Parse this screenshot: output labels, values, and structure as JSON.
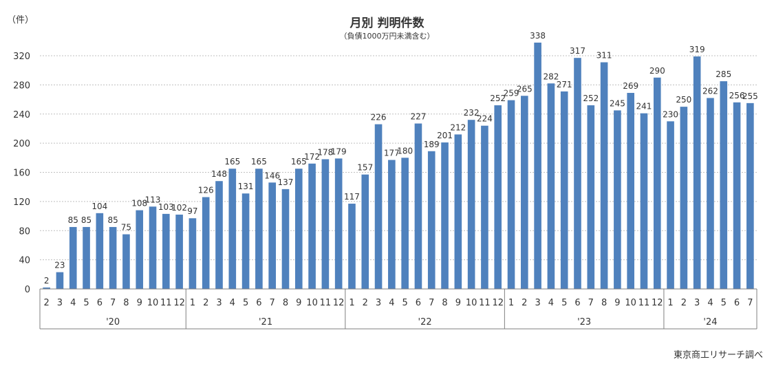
{
  "chart_data": {
    "type": "bar",
    "title": "月別 判明件数",
    "subtitle": "（負債1000万円未満含む）",
    "ylabel": "（件）",
    "source": "東京商工リサーチ調べ",
    "ylim": [
      0,
      340
    ],
    "yticks": [
      0,
      40,
      80,
      120,
      160,
      200,
      240,
      280,
      320
    ],
    "grid": true,
    "color": "#4f81bd",
    "years": [
      {
        "label": "'20",
        "months": [
          "2",
          "3",
          "4",
          "5",
          "6",
          "7",
          "8",
          "9",
          "10",
          "11",
          "12"
        ]
      },
      {
        "label": "'21",
        "months": [
          "1",
          "2",
          "3",
          "4",
          "5",
          "6",
          "7",
          "8",
          "9",
          "10",
          "11",
          "12"
        ]
      },
      {
        "label": "'22",
        "months": [
          "1",
          "2",
          "3",
          "4",
          "5",
          "6",
          "7",
          "8",
          "9",
          "10",
          "11",
          "12"
        ]
      },
      {
        "label": "'23",
        "months": [
          "1",
          "2",
          "3",
          "4",
          "5",
          "6",
          "7",
          "8",
          "9",
          "10",
          "11",
          "12"
        ]
      },
      {
        "label": "'24",
        "months": [
          "1",
          "2",
          "3",
          "4",
          "5",
          "6",
          "7"
        ]
      }
    ],
    "values": [
      2,
      23,
      85,
      85,
      104,
      85,
      75,
      108,
      113,
      103,
      102,
      97,
      126,
      148,
      165,
      131,
      165,
      146,
      137,
      165,
      172,
      178,
      179,
      117,
      157,
      226,
      177,
      180,
      227,
      189,
      201,
      212,
      232,
      224,
      252,
      259,
      265,
      338,
      282,
      271,
      317,
      252,
      311,
      245,
      269,
      241,
      290,
      230,
      250,
      319,
      262,
      285,
      256,
      255
    ]
  }
}
